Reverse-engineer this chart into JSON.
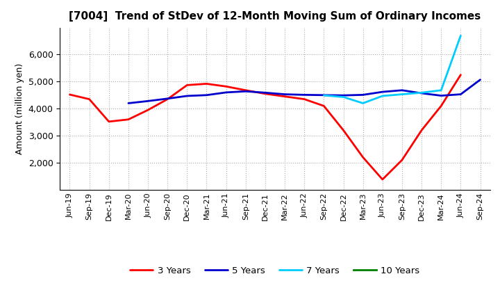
{
  "title": "[7004]  Trend of StDev of 12-Month Moving Sum of Ordinary Incomes",
  "ylabel": "Amount (million yen)",
  "x_labels": [
    "Jun-19",
    "Sep-19",
    "Dec-19",
    "Mar-20",
    "Jun-20",
    "Sep-20",
    "Dec-20",
    "Mar-21",
    "Jun-21",
    "Sep-21",
    "Dec-21",
    "Mar-22",
    "Jun-22",
    "Sep-22",
    "Dec-22",
    "Mar-23",
    "Jun-23",
    "Sep-23",
    "Dec-23",
    "Mar-24",
    "Jun-24",
    "Sep-24"
  ],
  "series": {
    "3 Years": {
      "color": "#ff0000",
      "data": [
        4520,
        4350,
        3520,
        3600,
        3950,
        4350,
        4870,
        4920,
        4820,
        4680,
        4550,
        4450,
        4350,
        4100,
        3200,
        2200,
        1380,
        2100,
        3200,
        4100,
        5250,
        null
      ]
    },
    "5 Years": {
      "color": "#0000cd",
      "data": [
        null,
        null,
        null,
        4200,
        4280,
        4370,
        4470,
        4500,
        4600,
        4640,
        4590,
        4530,
        4510,
        4500,
        4490,
        4510,
        4620,
        4680,
        4570,
        4480,
        4530,
        5070
      ]
    },
    "7 Years": {
      "color": "#00ccff",
      "data": [
        null,
        null,
        null,
        null,
        null,
        null,
        null,
        null,
        null,
        null,
        null,
        null,
        null,
        4490,
        4430,
        4200,
        4470,
        4530,
        4590,
        4680,
        6700,
        null
      ]
    },
    "10 Years": {
      "color": "#008000",
      "data": [
        null,
        null,
        null,
        null,
        null,
        null,
        null,
        null,
        null,
        null,
        null,
        null,
        null,
        null,
        null,
        null,
        null,
        null,
        null,
        null,
        null,
        null
      ]
    }
  },
  "ylim": [
    1000,
    7000
  ],
  "yticks": [
    2000,
    3000,
    4000,
    5000,
    6000
  ],
  "background_color": "#ffffff",
  "grid_color": "#b0b0b0",
  "title_fontsize": 11,
  "axis_fontsize": 9,
  "legend_fontsize": 9.5
}
